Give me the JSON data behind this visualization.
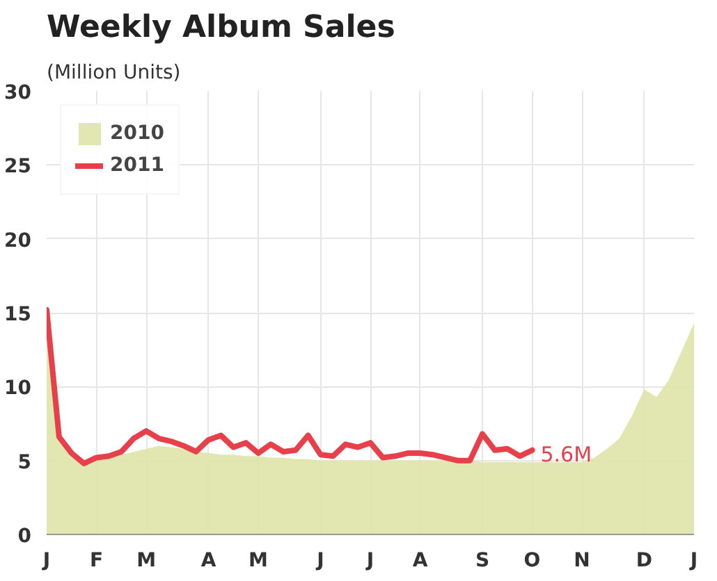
{
  "chart_data": {
    "type": "line",
    "title": "Weekly Album Sales",
    "subtitle": "(Million Units)",
    "categories": [
      "J",
      null,
      null,
      null,
      "F",
      null,
      null,
      null,
      "M",
      null,
      null,
      null,
      null,
      "A",
      null,
      null,
      null,
      "M",
      null,
      null,
      null,
      null,
      "J",
      null,
      null,
      null,
      "J",
      null,
      null,
      null,
      "A",
      null,
      null,
      null,
      null,
      "S",
      null,
      null,
      null,
      "O",
      null,
      null,
      null,
      "N",
      null,
      null,
      null,
      null,
      "D",
      null,
      null,
      null,
      "J"
    ],
    "ylim": [
      0,
      30
    ],
    "yticks": [
      0,
      5,
      10,
      15,
      20,
      25,
      30
    ],
    "grid": true,
    "legend": "top left",
    "series": [
      {
        "name": "2010",
        "type": "area",
        "color": "#dfe4a8",
        "values": [
          14.5,
          6.5,
          5.5,
          5,
          5,
          5.2,
          5.4,
          5.6,
          5.8,
          6,
          5.9,
          5.8,
          5.6,
          5.5,
          5.4,
          5.4,
          5.3,
          5.3,
          5.2,
          5.2,
          5.1,
          5.1,
          5,
          5,
          5,
          5,
          5,
          5,
          5,
          5,
          5,
          5,
          5,
          5,
          5,
          4.9,
          4.9,
          4.9,
          4.9,
          4.9,
          4.9,
          4.9,
          4.9,
          4.9,
          5.2,
          5.8,
          6.5,
          8,
          9.8,
          9.3,
          10.5,
          12.4,
          14.3
        ]
      },
      {
        "name": "2011",
        "color": "#e8404a",
        "values": [
          15.2,
          6.6,
          5.5,
          4.8,
          5.2,
          5.3,
          5.6,
          6.5,
          7.0,
          6.5,
          6.3,
          6.0,
          5.6,
          6.4,
          6.7,
          5.9,
          6.2,
          5.5,
          6.1,
          5.6,
          5.7,
          6.7,
          5.4,
          5.3,
          6.1,
          5.9,
          6.2,
          5.2,
          5.3,
          5.5,
          5.5,
          5.4,
          5.2,
          5.0,
          5.0,
          6.8,
          5.7,
          5.8,
          5.3,
          5.7,
          null,
          null,
          null,
          null,
          null,
          null,
          null,
          null,
          null,
          null,
          null,
          null,
          null
        ]
      }
    ],
    "annotations": [
      {
        "text": "5.6M",
        "x": "O",
        "y": 5.7
      }
    ]
  }
}
